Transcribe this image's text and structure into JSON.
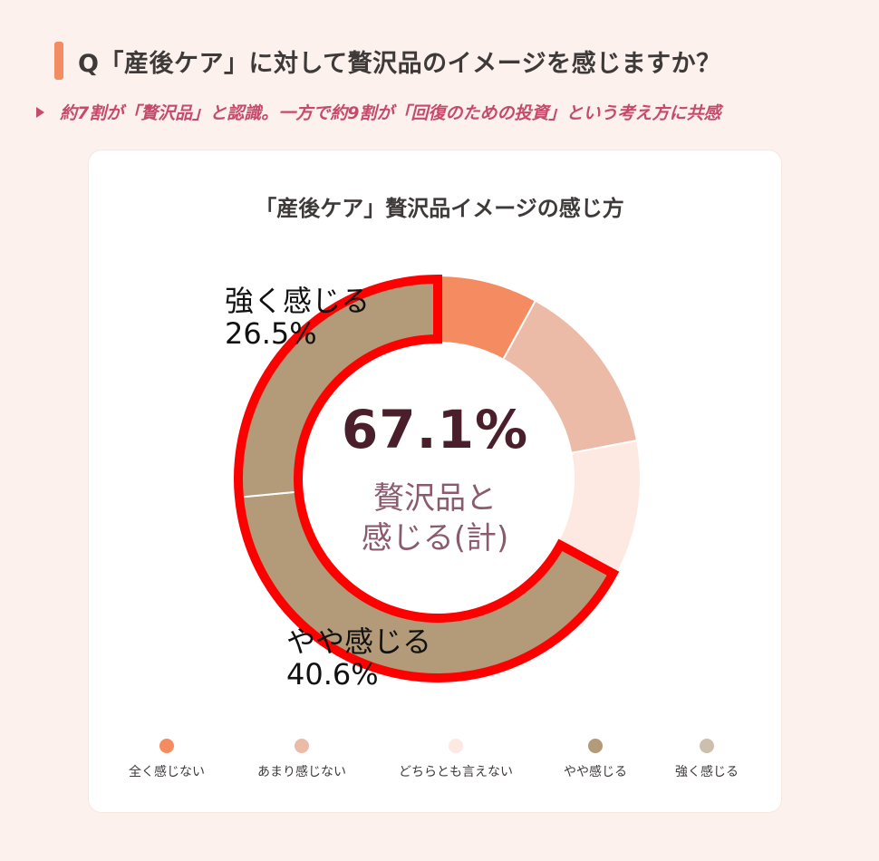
{
  "header": {
    "question": "Q「産後ケア」に対して贅沢品のイメージを感じますか？",
    "subtitle": "約7割が「贅沢品」と認識。一方で約9割が「回復のための投資」という考え方に共感"
  },
  "chart_data": {
    "type": "pie",
    "title": "「産後ケア」贅沢品イメージの感じ方",
    "categories": [
      "全く感じない",
      "あまり感じない",
      "どちらとも言えない",
      "やや感じる",
      "強く感じる"
    ],
    "values": [
      8.0,
      14.0,
      10.9,
      40.6,
      26.5
    ],
    "colors": [
      "#f58b60",
      "#ebbba8",
      "#fde9e2",
      "#b39a78",
      "#b39a78"
    ],
    "legend_colors": [
      "#f58b60",
      "#ebbba8",
      "#fde9e2",
      "#b39a78",
      "#cdbfae"
    ],
    "legend_position": "bottom",
    "center": {
      "value": "67.1%",
      "label_line1": "贅沢品と",
      "label_line2": "感じる(計)"
    },
    "labels": [
      {
        "name": "強く感じる",
        "value": "26.5%"
      },
      {
        "name": "やや感じる",
        "value": "40.6%"
      }
    ],
    "highlight_color": "#ff0000"
  }
}
